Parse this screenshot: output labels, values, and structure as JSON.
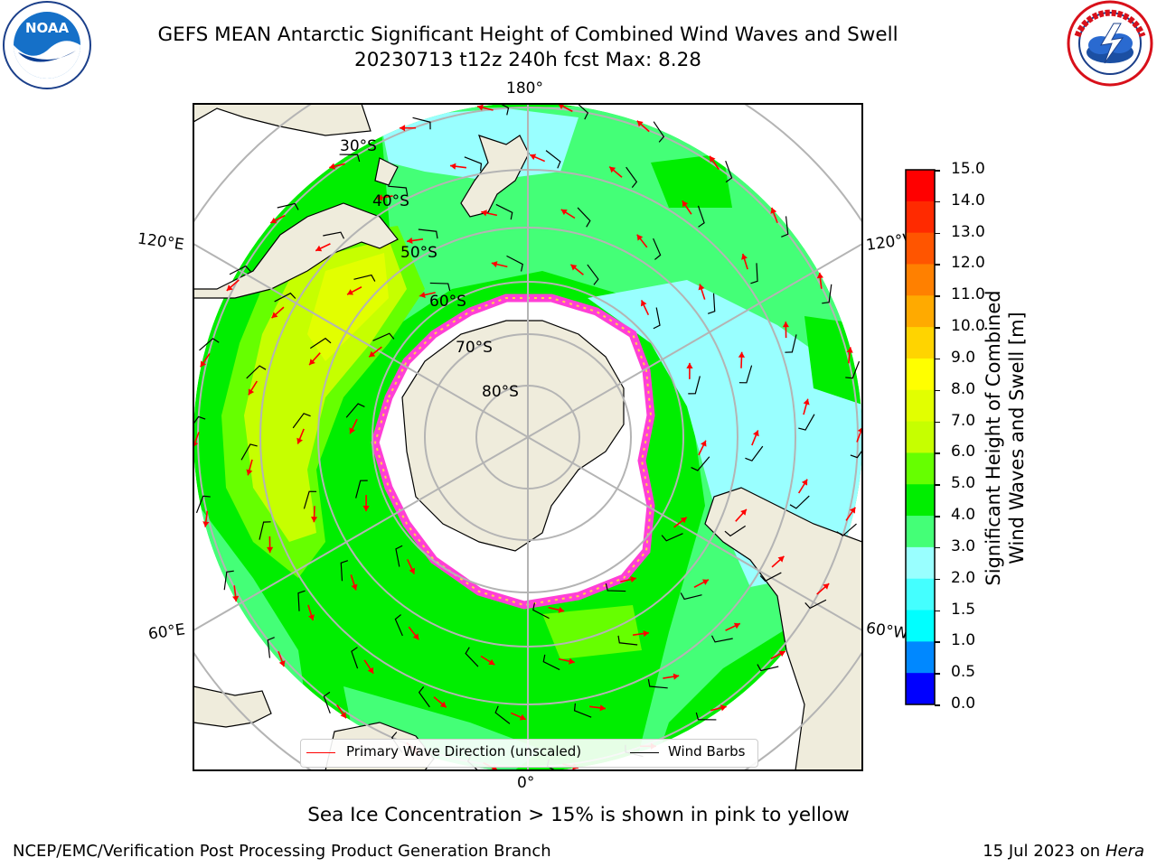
{
  "title": {
    "line1": "GEFS MEAN Antarctic Significant Height of Combined Wind Waves and Swell",
    "line2": "20230713 t12z 240h fcst   Max: 8.28"
  },
  "logos": {
    "left": "noaa-logo",
    "right": "national-weather-service-logo"
  },
  "map": {
    "projection": "south-polar-stereographic",
    "longitude_labels": {
      "top": "180°",
      "bottom": "0°",
      "upper_left": "120°E",
      "lower_left": "60°E",
      "upper_right": "120°W",
      "lower_right": "60°W"
    },
    "latitude_labels": [
      "30°S",
      "40°S",
      "50°S",
      "60°S",
      "70°S",
      "80°S"
    ],
    "colors": {
      "land": "#efecdc",
      "ice": "#ffffff",
      "ice_edge": "#ff3fd6",
      "arrow": "#ff0000",
      "barb": "#000000"
    }
  },
  "legend": {
    "wave_label": "Primary Wave Direction (unscaled)",
    "barb_label": "Wind Barbs"
  },
  "colorbar": {
    "label_line1": "Significant Height of Combined",
    "label_line2": "Wind Waves and Swell [m]",
    "ticks": [
      "15.0",
      "14.0",
      "13.0",
      "12.0",
      "11.0",
      "10.0",
      "9.0",
      "8.0",
      "7.0",
      "6.0",
      "5.0",
      "4.0",
      "3.0",
      "2.0",
      "1.5",
      "1.0",
      "0.5",
      "0.0"
    ],
    "colors": [
      "#ff0000",
      "#ff2a00",
      "#ff5500",
      "#ff8000",
      "#ffaa00",
      "#ffd400",
      "#ffff00",
      "#e2ff00",
      "#c6ff00",
      "#66ff00",
      "#00ee00",
      "#44ff77",
      "#99ffff",
      "#44ffff",
      "#00ffff",
      "#0088ff",
      "#0000ff"
    ]
  },
  "notes": {
    "ice": "Sea Ice Concentration > 15% is shown in pink to yellow",
    "footer_left": "NCEP/EMC/Verification Post Processing Product Generation Branch",
    "footer_right_date": "15 Jul 2023 on ",
    "footer_right_machine": "Hera"
  }
}
